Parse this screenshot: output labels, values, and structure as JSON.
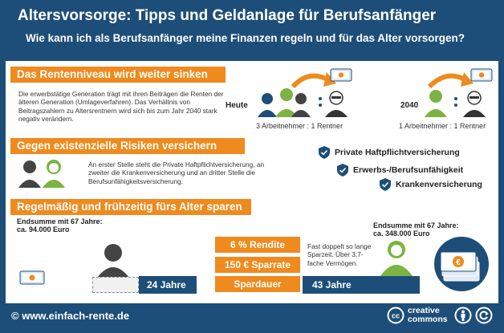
{
  "header": {
    "title": "Altersvorsorge: Tipps und Geldanlage für Berufsanfänger",
    "subtitle": "Wie kann ich als Berufsanfänger meine Finanzen regeln und für das Alter vorsorgen?"
  },
  "section1": {
    "heading": "Das Rentenniveau wird weiter sinken",
    "text": "Die erwerbstätige Generation trägt mit ihren Beiträgen die Renten der älteren Generation (Umlageverfahren). Das Verhältnis von Beitragszahlern zu Altersrentnern wird sich bis zum Jahr 2040 stark negativ verändern.",
    "today_label": "Heute",
    "today_ratio": "3 Arbeitnehmer : 1 Rentner",
    "future_label": "2040",
    "future_ratio": "1 Arbeitnehmer : 1 Rentner"
  },
  "section2": {
    "heading": "Gegen existenzielle Risiken versichern",
    "text": "An erster Stelle steht die Private Haftpflichtversicherung, an zweiter die Krankenversicherung und an dritter Stelle die Berufsunfähigkeitsversicherung.",
    "items": [
      "Private Haftpflichtversicherung",
      "Erwerbs-/Berufsunfähigkeit",
      "Krankenversicherung"
    ]
  },
  "section3": {
    "heading": "Regelmäßig und frühzeitig fürs Alter sparen",
    "left_total": "Endsumme mit 67 Jahre:\nca. 94.000 Euro",
    "right_total": "Endsumme mit 67 Jahre:\nca. 348.000 Euro",
    "rendite": "6 % Rendite",
    "sparrate": "150 € Sparrate",
    "spardauer": "Spardauer",
    "left_age": "24 Jahre",
    "right_age": "43 Jahre",
    "note": "Fast doppelt so lange Sparzeit. Über 3,7-fache Vermögen."
  },
  "footer": {
    "url": "© www.einfach-rente.de",
    "cc_line1": "creative",
    "cc_line2": "commons"
  },
  "colors": {
    "navy": "#1d4e79",
    "orange": "#ef8a1e",
    "green": "#7cb342",
    "white": "#ffffff"
  }
}
